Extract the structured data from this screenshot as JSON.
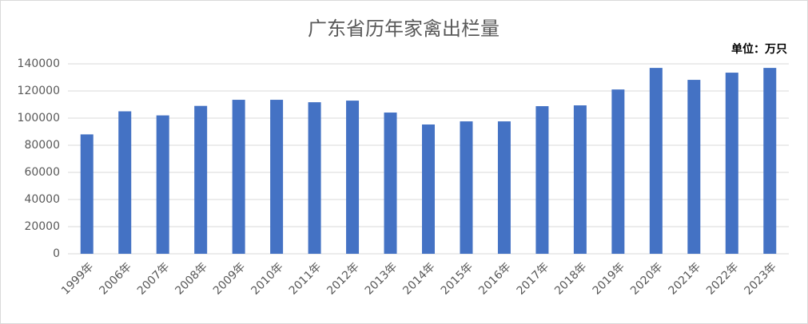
{
  "chart_data": {
    "type": "bar",
    "title": "广东省历年家禽出栏量",
    "annotation": "单位：万只",
    "categories": [
      "1999年",
      "2006年",
      "2007年",
      "2008年",
      "2009年",
      "2010年",
      "2011年",
      "2012年",
      "2013年",
      "2014年",
      "2015年",
      "2016年",
      "2017年",
      "2018年",
      "2019年",
      "2020年",
      "2021年",
      "2022年",
      "2023年"
    ],
    "values": [
      88000,
      105000,
      102000,
      109000,
      113500,
      113500,
      111700,
      112900,
      104100,
      95300,
      97600,
      97600,
      108800,
      109400,
      121100,
      137000,
      128200,
      133500,
      137000
    ],
    "color": "#4472c4",
    "ylim": [
      0,
      140000
    ],
    "yticks": [
      0,
      20000,
      40000,
      60000,
      80000,
      100000,
      120000,
      140000
    ],
    "grid": true
  }
}
